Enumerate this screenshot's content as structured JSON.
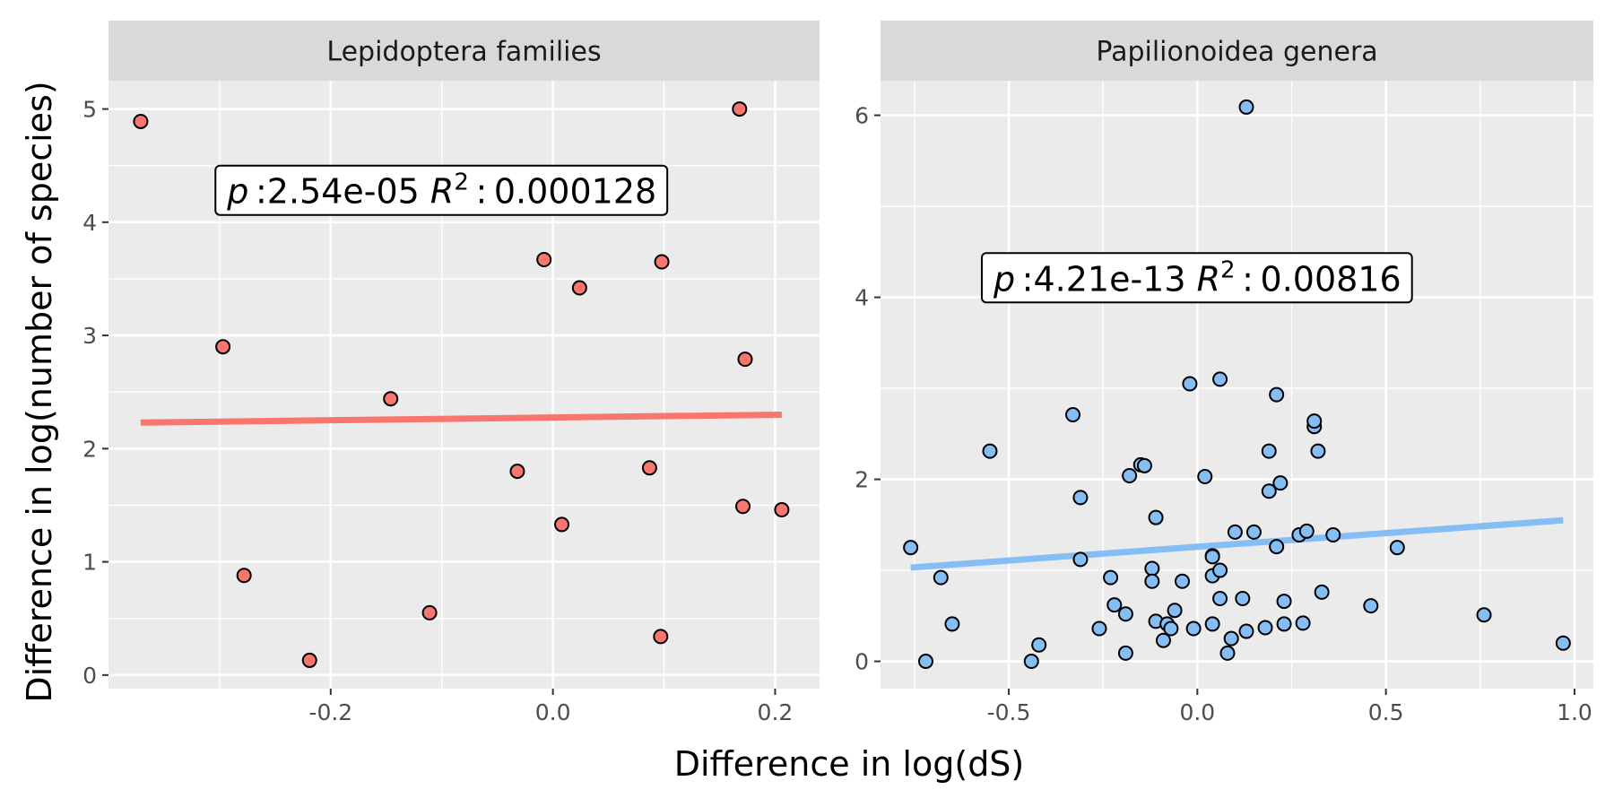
{
  "figure": {
    "xlabel": "Difference in log(dS)",
    "ylabel": "Difference in log(number of species)"
  },
  "chart_data": [
    {
      "type": "scatter",
      "panel": "Lepidoptera families",
      "point_color": "#F8766D",
      "line_color": "#F8766D",
      "xlim": [
        -0.4,
        0.24
      ],
      "ylim": [
        -0.12,
        5.25
      ],
      "x_ticks": [
        -0.2,
        0.0,
        0.2
      ],
      "x_tick_labels": [
        "-0.2",
        "0.0",
        "0.2"
      ],
      "y_ticks": [
        0,
        1,
        2,
        3,
        4,
        5
      ],
      "y_tick_labels": [
        "0",
        "1",
        "2",
        "3",
        "4",
        "5"
      ],
      "points": [
        {
          "x": -0.371,
          "y": 4.89
        },
        {
          "x": -0.297,
          "y": 2.9
        },
        {
          "x": -0.278,
          "y": 0.88
        },
        {
          "x": -0.219,
          "y": 0.13
        },
        {
          "x": -0.146,
          "y": 2.44
        },
        {
          "x": -0.111,
          "y": 0.55
        },
        {
          "x": -0.032,
          "y": 1.8
        },
        {
          "x": -0.008,
          "y": 3.67
        },
        {
          "x": 0.008,
          "y": 1.33
        },
        {
          "x": 0.024,
          "y": 3.42
        },
        {
          "x": 0.087,
          "y": 1.83
        },
        {
          "x": 0.097,
          "y": 0.34
        },
        {
          "x": 0.098,
          "y": 3.65
        },
        {
          "x": 0.168,
          "y": 5.0
        },
        {
          "x": 0.171,
          "y": 1.49
        },
        {
          "x": 0.173,
          "y": 2.79
        },
        {
          "x": 0.206,
          "y": 1.46
        }
      ],
      "fit_line": {
        "x": [
          -0.371,
          0.206
        ],
        "y": [
          2.23,
          2.3
        ]
      },
      "annotation": {
        "p_label": "p",
        "p_value": "2.54e-05",
        "r2_label": "R",
        "r2_sup": "2",
        "r2_value": "0.000128",
        "x": -0.1,
        "y": 4.27
      }
    },
    {
      "type": "scatter",
      "panel": "Papilionoidea genera",
      "point_color": "#85BEF4",
      "line_color": "#85BEF4",
      "xlim": [
        -0.84,
        1.05
      ],
      "ylim": [
        -0.3,
        6.38
      ],
      "x_ticks": [
        -0.5,
        0.0,
        0.5,
        1.0
      ],
      "x_tick_labels": [
        "-0.5",
        "0.0",
        "0.5",
        "1.0"
      ],
      "y_ticks": [
        0,
        2,
        4,
        6
      ],
      "y_tick_labels": [
        "0",
        "2",
        "4",
        "6"
      ],
      "points": [
        {
          "x": -0.76,
          "y": 1.25
        },
        {
          "x": -0.72,
          "y": 0.0
        },
        {
          "x": -0.68,
          "y": 0.92
        },
        {
          "x": -0.65,
          "y": 0.41
        },
        {
          "x": -0.55,
          "y": 2.31
        },
        {
          "x": -0.44,
          "y": 0.0
        },
        {
          "x": -0.42,
          "y": 0.18
        },
        {
          "x": -0.33,
          "y": 2.71
        },
        {
          "x": -0.31,
          "y": 1.12
        },
        {
          "x": -0.31,
          "y": 1.8
        },
        {
          "x": -0.26,
          "y": 0.36
        },
        {
          "x": -0.23,
          "y": 0.92
        },
        {
          "x": -0.22,
          "y": 0.62
        },
        {
          "x": -0.19,
          "y": 0.52
        },
        {
          "x": -0.19,
          "y": 0.09
        },
        {
          "x": -0.18,
          "y": 2.04
        },
        {
          "x": -0.15,
          "y": 2.16
        },
        {
          "x": -0.14,
          "y": 2.15
        },
        {
          "x": -0.12,
          "y": 1.02
        },
        {
          "x": -0.12,
          "y": 0.88
        },
        {
          "x": -0.11,
          "y": 0.44
        },
        {
          "x": -0.11,
          "y": 1.58
        },
        {
          "x": -0.09,
          "y": 0.23
        },
        {
          "x": -0.08,
          "y": 0.41
        },
        {
          "x": -0.07,
          "y": 0.36
        },
        {
          "x": -0.06,
          "y": 0.56
        },
        {
          "x": -0.04,
          "y": 0.88
        },
        {
          "x": -0.02,
          "y": 3.05
        },
        {
          "x": -0.01,
          "y": 0.36
        },
        {
          "x": 0.02,
          "y": 2.03
        },
        {
          "x": 0.04,
          "y": 0.41
        },
        {
          "x": 0.04,
          "y": 1.16
        },
        {
          "x": 0.04,
          "y": 1.15
        },
        {
          "x": 0.04,
          "y": 0.94
        },
        {
          "x": 0.06,
          "y": 1.0
        },
        {
          "x": 0.06,
          "y": 3.1
        },
        {
          "x": 0.06,
          "y": 0.69
        },
        {
          "x": 0.08,
          "y": 0.09
        },
        {
          "x": 0.09,
          "y": 0.25
        },
        {
          "x": 0.1,
          "y": 1.42
        },
        {
          "x": 0.12,
          "y": 0.69
        },
        {
          "x": 0.13,
          "y": 0.33
        },
        {
          "x": 0.13,
          "y": 6.09
        },
        {
          "x": 0.15,
          "y": 1.42
        },
        {
          "x": 0.18,
          "y": 0.37
        },
        {
          "x": 0.19,
          "y": 2.31
        },
        {
          "x": 0.19,
          "y": 1.87
        },
        {
          "x": 0.21,
          "y": 2.93
        },
        {
          "x": 0.21,
          "y": 1.26
        },
        {
          "x": 0.22,
          "y": 1.96
        },
        {
          "x": 0.23,
          "y": 0.41
        },
        {
          "x": 0.23,
          "y": 0.66
        },
        {
          "x": 0.27,
          "y": 1.39
        },
        {
          "x": 0.28,
          "y": 0.42
        },
        {
          "x": 0.29,
          "y": 1.43
        },
        {
          "x": 0.31,
          "y": 2.58
        },
        {
          "x": 0.31,
          "y": 2.64
        },
        {
          "x": 0.32,
          "y": 2.31
        },
        {
          "x": 0.33,
          "y": 0.76
        },
        {
          "x": 0.36,
          "y": 1.39
        },
        {
          "x": 0.46,
          "y": 0.61
        },
        {
          "x": 0.53,
          "y": 1.25
        },
        {
          "x": 0.76,
          "y": 0.51
        },
        {
          "x": 0.97,
          "y": 0.2
        }
      ],
      "fit_line": {
        "x": [
          -0.76,
          0.97
        ],
        "y": [
          1.03,
          1.55
        ]
      },
      "annotation": {
        "p_label": "p",
        "p_value": "4.21e-13",
        "r2_label": "R",
        "r2_sup": "2",
        "r2_value": "0.00816",
        "x": 0.0,
        "y": 4.2
      }
    }
  ]
}
